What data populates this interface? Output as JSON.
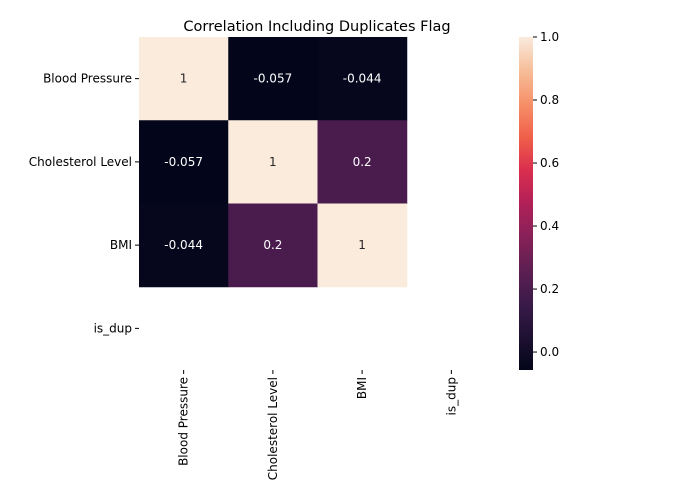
{
  "chart_data": {
    "type": "heatmap",
    "title": "Correlation Including Duplicates Flag",
    "x_labels": [
      "Blood Pressure",
      "Cholesterol Level",
      "BMI",
      "is_dup"
    ],
    "y_labels": [
      "Blood Pressure",
      "Cholesterol Level",
      "BMI",
      "is_dup"
    ],
    "matrix": [
      [
        1,
        -0.057,
        -0.044,
        null
      ],
      [
        -0.057,
        1,
        0.2,
        null
      ],
      [
        -0.044,
        0.2,
        1,
        null
      ],
      [
        null,
        null,
        null,
        null
      ]
    ],
    "annotations": [
      [
        "1",
        "-0.057",
        "-0.044",
        ""
      ],
      [
        "-0.057",
        "1",
        "0.2",
        ""
      ],
      [
        "-0.044",
        "0.2",
        "1",
        ""
      ],
      [
        "",
        "",
        "",
        ""
      ]
    ],
    "colorbar": {
      "min": -0.057,
      "max": 1.0,
      "ticks": [
        0.0,
        0.2,
        0.4,
        0.6,
        0.8,
        1.0
      ],
      "tick_labels": [
        "0.0",
        "0.2",
        "0.4",
        "0.6",
        "0.8",
        "1.0"
      ],
      "colormap": "rocket"
    }
  }
}
